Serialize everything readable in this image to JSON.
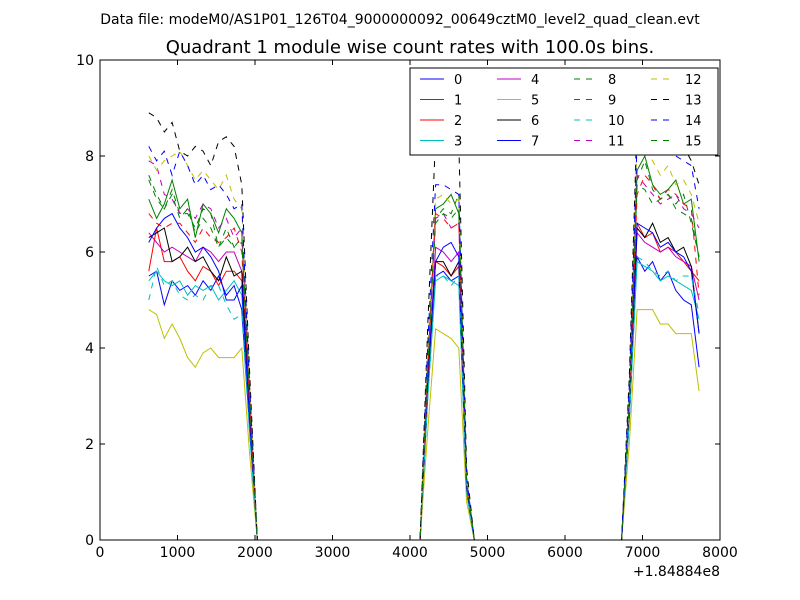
{
  "chart_data": {
    "type": "line",
    "suptitle": "Data file: modeM0/AS1P01_126T04_9000000092_00649cztM0_level2_quad_clean.evt",
    "title": "Quadrant 1 module wise count rates with 100.0s bins.",
    "xlabel": "",
    "ylabel": "",
    "x_offset_label": "+1.84884e8",
    "xlim": [
      0,
      8000
    ],
    "ylim": [
      0,
      10
    ],
    "xticks": [
      0,
      1000,
      2000,
      3000,
      4000,
      5000,
      6000,
      7000,
      8000
    ],
    "yticks": [
      0,
      2,
      4,
      6,
      8,
      10
    ],
    "xtick_labels": [
      "0",
      "1000",
      "2000",
      "3000",
      "4000",
      "5000",
      "6000",
      "7000",
      "8000"
    ],
    "ytick_labels": [
      "0",
      "2",
      "4",
      "6",
      "8",
      "10"
    ],
    "legend_position": "top-right",
    "x": [
      630,
      730,
      830,
      930,
      1030,
      1130,
      1230,
      1330,
      1430,
      1530,
      1630,
      1730,
      1830,
      1930,
      2030,
      2130,
      2230,
      4130,
      4230,
      4330,
      4430,
      4530,
      4630,
      4730,
      4830,
      4930,
      6730,
      6830,
      6930,
      7030,
      7130,
      7230,
      7330,
      7430,
      7530,
      7630,
      7730
    ],
    "series": [
      {
        "name": "0",
        "color": "#0000ff",
        "dash": "solid",
        "values": [
          5.5,
          5.6,
          4.9,
          5.4,
          5.2,
          5.3,
          5.1,
          5.4,
          5.2,
          5.5,
          5.1,
          5.3,
          4.8,
          2.3,
          0,
          0,
          0,
          0,
          3.0,
          5.5,
          5.6,
          5.4,
          5.5,
          1.0,
          0,
          0,
          0,
          2.5,
          5.9,
          5.6,
          5.8,
          5.4,
          5.6,
          5.2,
          5.0,
          4.9,
          3.6
        ]
      },
      {
        "name": "1",
        "color": "#008000",
        "dash": "solid",
        "values": [
          7.1,
          6.7,
          7.0,
          7.5,
          6.9,
          7.1,
          6.3,
          7.0,
          6.8,
          6.4,
          6.9,
          6.7,
          6.4,
          3.0,
          0,
          0,
          0,
          0,
          3.6,
          6.9,
          7.0,
          7.2,
          6.8,
          1.2,
          0,
          0,
          0,
          2.8,
          7.7,
          8.0,
          7.4,
          7.2,
          7.3,
          7.5,
          7.0,
          7.1,
          5.8
        ]
      },
      {
        "name": "2",
        "color": "#ff0000",
        "dash": "solid",
        "values": [
          5.6,
          6.5,
          5.8,
          5.8,
          5.9,
          5.6,
          5.4,
          5.7,
          5.6,
          5.3,
          5.6,
          5.6,
          5.4,
          2.6,
          0,
          0,
          0,
          0,
          3.2,
          5.8,
          5.7,
          5.5,
          5.7,
          1.1,
          0,
          0,
          0,
          2.7,
          6.6,
          6.3,
          6.4,
          6.0,
          6.1,
          6.0,
          5.8,
          5.6,
          5.4
        ]
      },
      {
        "name": "3",
        "color": "#00bfbf",
        "dash": "solid",
        "values": [
          5.4,
          5.6,
          5.4,
          5.3,
          5.4,
          5.1,
          5.3,
          5.2,
          5.3,
          5.0,
          5.2,
          5.4,
          5.1,
          2.4,
          0,
          0,
          0,
          0,
          3.0,
          5.4,
          5.5,
          5.4,
          5.3,
          1.0,
          0,
          0,
          0,
          2.5,
          5.8,
          5.7,
          5.6,
          5.4,
          5.5,
          5.4,
          5.3,
          5.2,
          4.6
        ]
      },
      {
        "name": "4",
        "color": "#bf00bf",
        "dash": "solid",
        "values": [
          6.4,
          6.2,
          6.0,
          6.1,
          6.0,
          5.9,
          5.8,
          6.1,
          6.0,
          5.8,
          6.0,
          6.0,
          5.6,
          2.7,
          0,
          0,
          0,
          0,
          3.3,
          6.1,
          6.0,
          5.8,
          6.0,
          1.1,
          0,
          0,
          0,
          2.7,
          6.4,
          6.2,
          6.1,
          6.0,
          6.1,
          5.9,
          5.8,
          5.7,
          5.0
        ]
      },
      {
        "name": "5",
        "color": "#bfbf00",
        "dash": "solid",
        "values": [
          4.8,
          4.7,
          4.2,
          4.5,
          4.2,
          3.8,
          3.6,
          3.9,
          4.0,
          3.8,
          3.8,
          3.8,
          4.0,
          1.8,
          0,
          0,
          0,
          0,
          2.3,
          4.4,
          4.3,
          4.2,
          4.0,
          0.8,
          0,
          0,
          0,
          2.0,
          4.8,
          4.8,
          4.8,
          4.5,
          4.5,
          4.3,
          4.3,
          4.3,
          3.1
        ]
      },
      {
        "name": "6",
        "color": "#000000",
        "dash": "solid",
        "values": [
          6.3,
          6.4,
          6.5,
          5.8,
          5.9,
          6.1,
          5.8,
          5.9,
          5.6,
          5.4,
          5.9,
          5.5,
          5.6,
          2.6,
          0,
          0,
          0,
          0,
          3.3,
          5.8,
          5.8,
          5.5,
          5.8,
          1.1,
          0,
          0,
          0,
          2.7,
          6.5,
          6.3,
          6.6,
          6.2,
          6.3,
          6.0,
          6.1,
          5.7,
          4.3
        ]
      },
      {
        "name": "7",
        "color": "#0000ff",
        "dash": "solid",
        "values": [
          6.2,
          6.5,
          6.7,
          6.8,
          6.5,
          6.3,
          6.0,
          6.1,
          5.9,
          5.6,
          5.0,
          5.0,
          5.3,
          2.5,
          0,
          0,
          0,
          0,
          3.4,
          5.8,
          6.1,
          6.2,
          5.9,
          1.1,
          0,
          0,
          0,
          2.8,
          6.6,
          6.5,
          6.4,
          6.1,
          6.2,
          6.0,
          5.9,
          5.6,
          4.3
        ]
      },
      {
        "name": "8",
        "color": "#008000",
        "dash": "dashed",
        "values": [
          7.5,
          7.1,
          6.9,
          7.3,
          6.8,
          6.8,
          6.5,
          6.9,
          6.8,
          6.1,
          6.5,
          6.1,
          6.2,
          2.9,
          0,
          0,
          0,
          0,
          3.8,
          6.7,
          6.9,
          6.8,
          7.2,
          1.3,
          0,
          0,
          0,
          2.9,
          7.5,
          7.9,
          7.3,
          7.1,
          7.2,
          7.0,
          7.2,
          6.6,
          5.9
        ]
      },
      {
        "name": "9",
        "color": "#ff0000",
        "dash": "dashed",
        "values": [
          6.8,
          6.6,
          6.5,
          6.6,
          6.6,
          6.4,
          6.2,
          6.5,
          6.3,
          6.2,
          6.3,
          6.5,
          6.0,
          2.8,
          0,
          0,
          0,
          0,
          3.5,
          6.8,
          6.7,
          6.5,
          6.6,
          1.2,
          0,
          0,
          0,
          2.8,
          7.2,
          7.6,
          7.4,
          7.1,
          7.3,
          7.2,
          7.0,
          6.9,
          5.1
        ]
      },
      {
        "name": "10",
        "color": "#00bfbf",
        "dash": "dashed",
        "values": [
          5.0,
          5.7,
          5.3,
          5.4,
          5.1,
          5.0,
          5.1,
          5.0,
          5.3,
          5.3,
          4.9,
          4.6,
          4.7,
          2.2,
          0,
          0,
          0,
          0,
          3.0,
          5.5,
          5.5,
          5.3,
          5.5,
          1.0,
          0,
          0,
          0,
          2.6,
          5.9,
          5.8,
          5.6,
          5.5,
          5.6,
          5.4,
          5.5,
          5.5,
          4.7
        ]
      },
      {
        "name": "11",
        "color": "#bf00bf",
        "dash": "dashed",
        "values": [
          7.9,
          7.8,
          7.2,
          7.1,
          6.8,
          6.9,
          6.7,
          7.0,
          6.9,
          6.5,
          6.7,
          6.3,
          6.5,
          3.0,
          0,
          0,
          0,
          0,
          3.9,
          6.7,
          6.8,
          6.5,
          6.6,
          1.2,
          0,
          0,
          0,
          2.9,
          7.6,
          7.4,
          7.2,
          7.0,
          7.1,
          7.2,
          6.9,
          6.8,
          6.5
        ]
      },
      {
        "name": "12",
        "color": "#bfbf00",
        "dash": "dashed",
        "values": [
          8.0,
          7.7,
          7.9,
          8.0,
          8.1,
          7.8,
          7.5,
          7.7,
          7.5,
          7.3,
          7.6,
          7.1,
          6.9,
          3.3,
          0,
          0,
          0,
          0,
          4.0,
          7.1,
          7.2,
          7.0,
          7.1,
          1.3,
          0,
          0,
          0,
          3.1,
          8.4,
          8.1,
          7.9,
          7.6,
          7.8,
          7.4,
          7.5,
          7.2,
          6.6
        ]
      },
      {
        "name": "13",
        "color": "#000000",
        "dash": "dashed",
        "values": [
          8.9,
          8.8,
          8.5,
          8.7,
          8.1,
          8.0,
          8.2,
          8.1,
          7.8,
          8.3,
          8.4,
          8.2,
          7.4,
          3.5,
          0,
          0,
          0,
          0,
          4.5,
          8.4,
          8.6,
          8.1,
          8.3,
          1.5,
          0,
          0,
          0,
          3.4,
          8.8,
          9.3,
          8.7,
          8.3,
          8.6,
          8.4,
          8.2,
          7.9,
          7.4
        ]
      },
      {
        "name": "14",
        "color": "#0000ff",
        "dash": "dashed",
        "values": [
          8.2,
          7.9,
          8.1,
          7.6,
          8.1,
          7.8,
          7.4,
          7.6,
          7.3,
          7.4,
          7.2,
          6.9,
          7.0,
          3.2,
          0,
          0,
          0,
          0,
          4.1,
          7.4,
          7.4,
          7.3,
          7.2,
          1.3,
          0,
          0,
          0,
          3.2,
          8.3,
          8.5,
          8.1,
          8.3,
          8.4,
          8.0,
          7.9,
          7.8,
          6.9
        ]
      },
      {
        "name": "15",
        "color": "#008000",
        "dash": "dashed",
        "values": [
          7.6,
          7.2,
          6.9,
          7.2,
          6.7,
          6.9,
          6.4,
          6.7,
          6.5,
          6.1,
          6.3,
          6.1,
          6.3,
          2.9,
          0,
          0,
          0,
          0,
          3.7,
          6.6,
          6.8,
          6.7,
          6.9,
          1.2,
          0,
          0,
          0,
          2.9,
          7.4,
          7.3,
          7.0,
          7.1,
          7.2,
          6.9,
          6.8,
          6.7,
          5.9
        ]
      }
    ]
  }
}
